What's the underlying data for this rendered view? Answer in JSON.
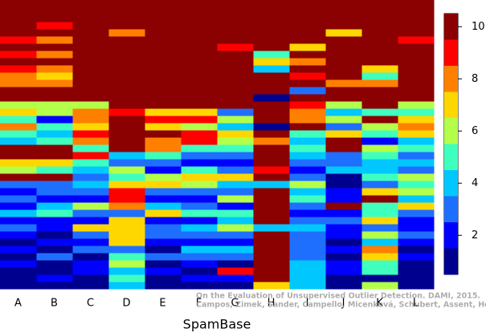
{
  "chart_data": {
    "type": "heatmap",
    "xlabel": "SpamBase",
    "watermark": [
      "On the Evaluation of Unsupervised Outlier Detection. DAMI, 2015.",
      "Campos, Zimek, Sander, Campello, Micenková, Schubert, Assent, Houle"
    ],
    "categories": [
      "A",
      "B",
      "C",
      "D",
      "E",
      "F",
      "G",
      "H",
      "I",
      "J",
      "K",
      "L"
    ],
    "colors": [
      "#00008f",
      "#0000ff",
      "#1f6fff",
      "#00c8ff",
      "#3fffbf",
      "#b4ff4a",
      "#ffd700",
      "#ff8000",
      "#ff0000",
      "#8b0000"
    ],
    "clim": [
      0.5,
      10.5
    ],
    "cticks": [
      2,
      4,
      6,
      8,
      10
    ],
    "values": [
      [
        10,
        10,
        10,
        10,
        10,
        9,
        10,
        9,
        10,
        9,
        8,
        8,
        10,
        10,
        6,
        7,
        5,
        8,
        5,
        4,
        10,
        10,
        7,
        6,
        10,
        3,
        2,
        3,
        2,
        4,
        2,
        3,
        2,
        1,
        2,
        1,
        2,
        1,
        1,
        1
      ],
      [
        10,
        10,
        10,
        9,
        10,
        8,
        10,
        8,
        10,
        8,
        7,
        8,
        10,
        10,
        6,
        6,
        2,
        5,
        4,
        5,
        10,
        10,
        7,
        5,
        10,
        3,
        3,
        2,
        4,
        5,
        2,
        2,
        1,
        2,
        1,
        3,
        1,
        1,
        2,
        1
      ],
      [
        10,
        10,
        10,
        10,
        10,
        10,
        10,
        10,
        10,
        10,
        10,
        10,
        10,
        10,
        6,
        8,
        8,
        7,
        9,
        8,
        5,
        9,
        5,
        4,
        3,
        4,
        3,
        2,
        6,
        3,
        2,
        7,
        3,
        2,
        3,
        1,
        2,
        2,
        1,
        1
      ],
      [
        10,
        10,
        10,
        10,
        8,
        10,
        10,
        10,
        10,
        10,
        10,
        10,
        10,
        10,
        10,
        9,
        10,
        10,
        10,
        10,
        10,
        4,
        3,
        6,
        5,
        7,
        9,
        9,
        8,
        3,
        7,
        7,
        7,
        7,
        3,
        5,
        6,
        4,
        5,
        4
      ],
      [
        10,
        10,
        10,
        10,
        10,
        10,
        10,
        10,
        10,
        10,
        10,
        10,
        10,
        10,
        10,
        7,
        9,
        7,
        10,
        8,
        8,
        5,
        3,
        2,
        6,
        7,
        3,
        2,
        4,
        7,
        2,
        3,
        3,
        2,
        1,
        3,
        1,
        2,
        1,
        1
      ],
      [
        10,
        10,
        10,
        10,
        10,
        10,
        10,
        10,
        10,
        10,
        10,
        10,
        10,
        10,
        10,
        7,
        9,
        6,
        9,
        9,
        5,
        3,
        2,
        5,
        7,
        6,
        3,
        2,
        3,
        5,
        2,
        4,
        3,
        2,
        4,
        3,
        2,
        1,
        2,
        1
      ],
      [
        10,
        10,
        10,
        10,
        10,
        10,
        9,
        10,
        10,
        10,
        10,
        10,
        10,
        10,
        10,
        3,
        6,
        4,
        7,
        6,
        5,
        3,
        2,
        3,
        7,
        4,
        3,
        6,
        2,
        5,
        4,
        6,
        3,
        2,
        4,
        3,
        1,
        9,
        2,
        1
      ],
      [
        10,
        10,
        10,
        10,
        10,
        10,
        10,
        5,
        7,
        4,
        10,
        10,
        10,
        1,
        10,
        10,
        10,
        1,
        10,
        8,
        10,
        10,
        10,
        9,
        10,
        4,
        10,
        10,
        10,
        10,
        10,
        4,
        10,
        10,
        10,
        10,
        10,
        10,
        10,
        7
      ],
      [
        10,
        10,
        10,
        10,
        10,
        10,
        7,
        10,
        8,
        10,
        9,
        10,
        3,
        10,
        9,
        8,
        8,
        10,
        5,
        4,
        5,
        4,
        3,
        2,
        3,
        6,
        4,
        5,
        3,
        2,
        3,
        4,
        3,
        3,
        3,
        3,
        4,
        4,
        4,
        4
      ],
      [
        10,
        10,
        10,
        10,
        7,
        10,
        10,
        10,
        10,
        10,
        10,
        8,
        10,
        10,
        6,
        4,
        6,
        3,
        7,
        10,
        10,
        3,
        3,
        4,
        1,
        1,
        2,
        2,
        10,
        2,
        3,
        2,
        2,
        1,
        2,
        1,
        2,
        2,
        1,
        1
      ],
      [
        10,
        10,
        10,
        10,
        10,
        10,
        10,
        10,
        10,
        7,
        5,
        8,
        10,
        10,
        10,
        5,
        10,
        6,
        5,
        2,
        6,
        5,
        4,
        4,
        5,
        3,
        7,
        10,
        5,
        5,
        7,
        3,
        6,
        4,
        8,
        7,
        5,
        5,
        1,
        6
      ],
      [
        10,
        10,
        10,
        10,
        10,
        9,
        10,
        10,
        10,
        10,
        10,
        10,
        10,
        10,
        6,
        5,
        7,
        8,
        7,
        4,
        5,
        3,
        4,
        3,
        6,
        5,
        6,
        4,
        7,
        3,
        2,
        2,
        3,
        2,
        1,
        2,
        1,
        1,
        1,
        1
      ]
    ]
  }
}
